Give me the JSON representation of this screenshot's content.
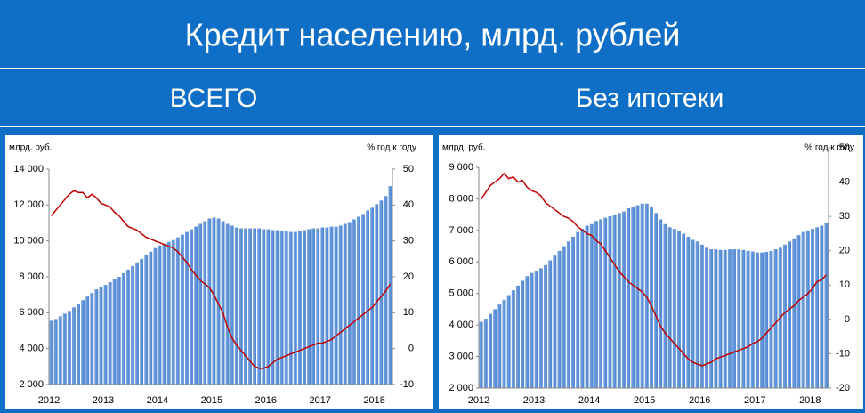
{
  "title": "Кредит населению, млрд. рублей",
  "chart_data": [
    {
      "type": "combo",
      "title": "ВСЕГО",
      "y_label": "млрд. руб.",
      "y2_label": "% год к году",
      "categories": [
        "2012",
        null,
        null,
        null,
        null,
        null,
        null,
        null,
        null,
        null,
        null,
        null,
        "2013",
        null,
        null,
        null,
        null,
        null,
        null,
        null,
        null,
        null,
        null,
        null,
        "2014",
        null,
        null,
        null,
        null,
        null,
        null,
        null,
        null,
        null,
        null,
        null,
        "2015",
        null,
        null,
        null,
        null,
        null,
        null,
        null,
        null,
        null,
        null,
        null,
        "2016",
        null,
        null,
        null,
        null,
        null,
        null,
        null,
        null,
        null,
        null,
        null,
        "2017",
        null,
        null,
        null,
        null,
        null,
        null,
        null,
        null,
        null,
        null,
        null,
        "2018",
        null,
        null,
        null
      ],
      "ylim": [
        2000,
        14000
      ],
      "yticks": [
        {
          "value": 2000,
          "label": "2 000"
        },
        {
          "value": 4000,
          "label": "4 000"
        },
        {
          "value": 6000,
          "label": "6 000"
        },
        {
          "value": 8000,
          "label": "8 000"
        },
        {
          "value": 10000,
          "label": "10 000"
        },
        {
          "value": 12000,
          "label": "12 000"
        },
        {
          "value": 14000,
          "label": "14 000"
        }
      ],
      "y2lim": [
        -10,
        50
      ],
      "y2ticks": [
        -10,
        0,
        10,
        20,
        30,
        40,
        50
      ],
      "series": [
        {
          "type": "bar",
          "color": "#4a84d2",
          "values": [
            5550,
            5650,
            5800,
            5950,
            6100,
            6300,
            6500,
            6700,
            6900,
            7100,
            7300,
            7450,
            7550,
            7700,
            7850,
            8000,
            8200,
            8400,
            8600,
            8800,
            9000,
            9200,
            9400,
            9600,
            9750,
            9850,
            9950,
            10050,
            10200,
            10350,
            10500,
            10650,
            10800,
            10950,
            11100,
            11250,
            11300,
            11250,
            11100,
            10950,
            10850,
            10750,
            10700,
            10700,
            10700,
            10700,
            10700,
            10650,
            10650,
            10600,
            10600,
            10550,
            10550,
            10500,
            10500,
            10550,
            10600,
            10650,
            10700,
            10700,
            10750,
            10750,
            10800,
            10800,
            10850,
            10950,
            11050,
            11200,
            11350,
            11500,
            11700,
            11850,
            12050,
            12250,
            12500,
            13050
          ]
        },
        {
          "type": "line",
          "axis": "y2",
          "color": "#c00000",
          "values": [
            37,
            38.5,
            40,
            41.5,
            43,
            44,
            43.5,
            43.5,
            42,
            43,
            42,
            40.5,
            40,
            39.5,
            38,
            37,
            35.5,
            34,
            33.5,
            33,
            32,
            31,
            30.5,
            30,
            29.5,
            29,
            28.5,
            28,
            27,
            25.5,
            24,
            22,
            20.5,
            19,
            18,
            17,
            15,
            12.5,
            10,
            6,
            3,
            1,
            -0.5,
            -2,
            -3.5,
            -5,
            -5.5,
            -5.5,
            -5,
            -4,
            -3,
            -2.5,
            -2,
            -1.5,
            -1,
            -0.5,
            0,
            0.5,
            1,
            1.5,
            1.5,
            2,
            2.5,
            3.5,
            4.5,
            5.5,
            6.5,
            7.5,
            8.5,
            9.5,
            10.5,
            11.5,
            13,
            14.5,
            16,
            18
          ]
        }
      ]
    },
    {
      "type": "combo",
      "title": "Без ипотеки",
      "y_label": "млрд. руб.",
      "y2_label": "% год к году",
      "categories": [
        "2012",
        null,
        null,
        null,
        null,
        null,
        null,
        null,
        null,
        null,
        null,
        null,
        "2013",
        null,
        null,
        null,
        null,
        null,
        null,
        null,
        null,
        null,
        null,
        null,
        "2014",
        null,
        null,
        null,
        null,
        null,
        null,
        null,
        null,
        null,
        null,
        null,
        "2015",
        null,
        null,
        null,
        null,
        null,
        null,
        null,
        null,
        null,
        null,
        null,
        "2016",
        null,
        null,
        null,
        null,
        null,
        null,
        null,
        null,
        null,
        null,
        null,
        "2017",
        null,
        null,
        null,
        null,
        null,
        null,
        null,
        null,
        null,
        null,
        null,
        "2018",
        null,
        null,
        null
      ],
      "ylim": [
        2000,
        9000
      ],
      "yticks": [
        {
          "value": 2000,
          "label": "2 000"
        },
        {
          "value": 3000,
          "label": "3 000"
        },
        {
          "value": 4000,
          "label": "4 000"
        },
        {
          "value": 5000,
          "label": "5 000"
        },
        {
          "value": 6000,
          "label": "6 000"
        },
        {
          "value": 7000,
          "label": "7 000"
        },
        {
          "value": 8000,
          "label": "8 000"
        },
        {
          "value": 9000,
          "label": "9 000"
        }
      ],
      "y2lim": [
        -20,
        50
      ],
      "y2ticks": [
        -20,
        -10,
        0,
        10,
        20,
        30,
        40,
        50
      ],
      "series": [
        {
          "type": "bar",
          "color": "#4a84d2",
          "values": [
            4100,
            4200,
            4350,
            4500,
            4650,
            4800,
            4950,
            5100,
            5250,
            5400,
            5550,
            5650,
            5700,
            5800,
            5900,
            6050,
            6200,
            6350,
            6500,
            6650,
            6800,
            6950,
            7050,
            7150,
            7200,
            7300,
            7350,
            7400,
            7450,
            7500,
            7550,
            7600,
            7700,
            7750,
            7800,
            7850,
            7850,
            7750,
            7550,
            7350,
            7200,
            7100,
            7050,
            7000,
            6900,
            6800,
            6700,
            6650,
            6550,
            6450,
            6400,
            6400,
            6380,
            6380,
            6400,
            6400,
            6400,
            6380,
            6350,
            6330,
            6300,
            6300,
            6320,
            6350,
            6400,
            6450,
            6550,
            6650,
            6750,
            6850,
            6950,
            7000,
            7050,
            7100,
            7150,
            7250
          ]
        },
        {
          "type": "line",
          "axis": "y2",
          "color": "#c00000",
          "values": [
            35,
            37,
            39,
            40,
            41,
            42.5,
            41,
            41.5,
            40,
            40.5,
            38.5,
            37.5,
            37,
            36,
            34,
            33,
            32,
            31,
            30,
            29.5,
            28.5,
            27,
            26,
            25,
            24.5,
            23,
            22,
            20,
            18,
            16,
            14,
            12.5,
            11,
            10,
            9,
            8,
            6.5,
            4,
            1,
            -2,
            -4,
            -5.5,
            -7,
            -8.5,
            -10,
            -11.5,
            -12.5,
            -13,
            -13.5,
            -13,
            -12.5,
            -11.5,
            -11,
            -10.5,
            -10,
            -9.5,
            -9,
            -8.5,
            -8,
            -7,
            -6.5,
            -5.5,
            -4,
            -2.5,
            -1,
            0.5,
            2,
            3,
            4,
            5.5,
            6.5,
            7.5,
            9,
            11,
            11.5,
            13
          ]
        }
      ]
    }
  ]
}
